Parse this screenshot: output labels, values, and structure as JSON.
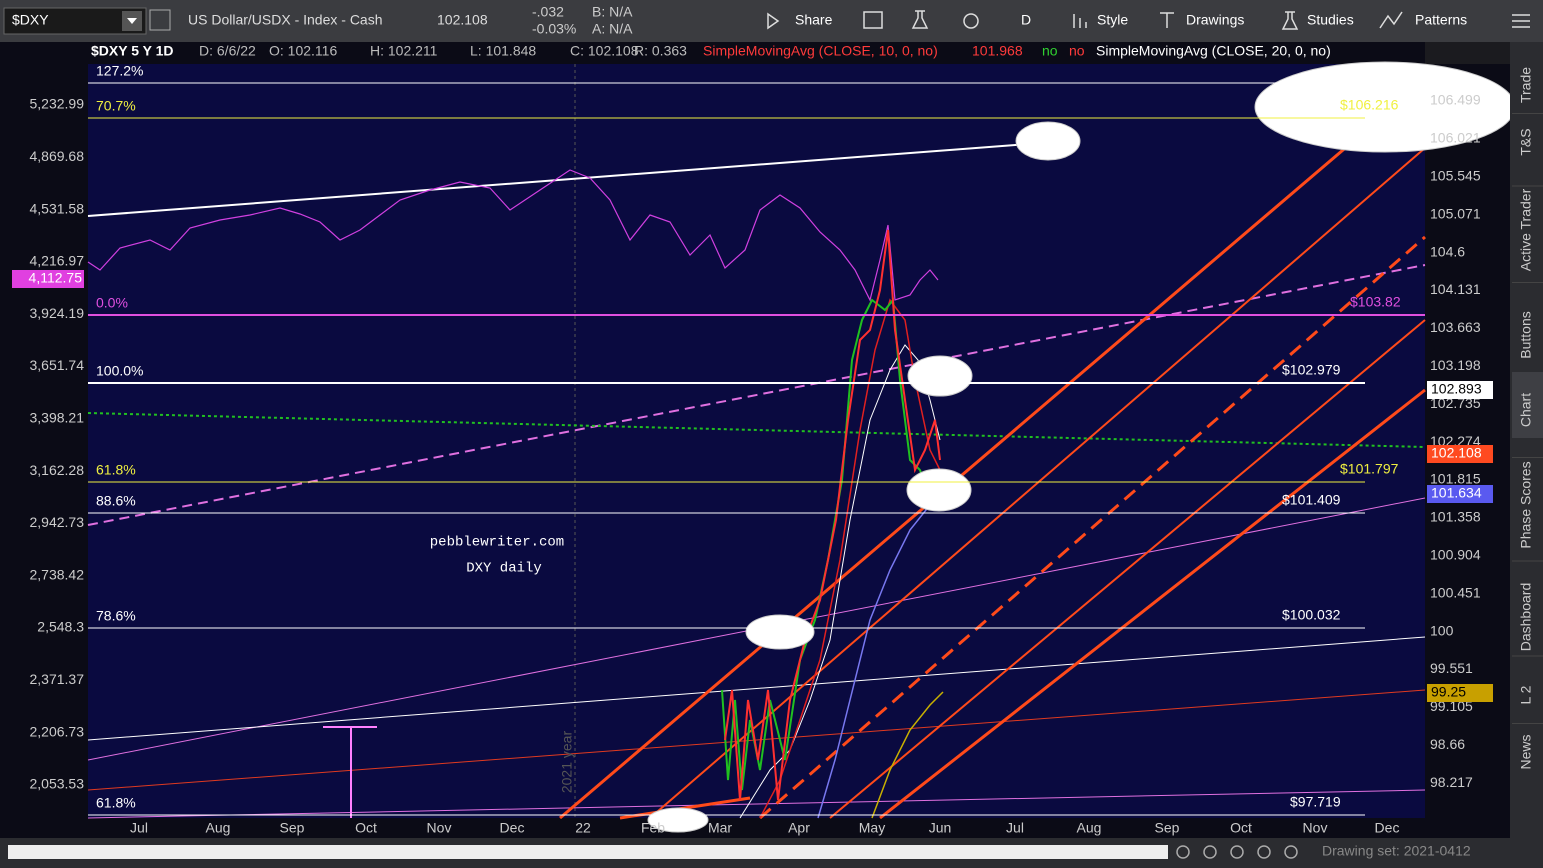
{
  "toolbar": {
    "symbol": "$DXY",
    "description": "US Dollar/USDX - Index - Cash",
    "last": "102.108",
    "change": "-.032",
    "change_pct": "-0.03%",
    "bid": "B: N/A",
    "ask": "A: N/A",
    "buttons": [
      "Share",
      "D",
      "Style",
      "Drawings",
      "Studies",
      "Patterns"
    ]
  },
  "header": {
    "chart": "$DXY 5 Y 1D",
    "date": "D: 6/6/22",
    "open": "O: 102.116",
    "high": "H: 102.211",
    "low": "L: 101.848",
    "close": "C: 102.108",
    "range": "R: 0.363",
    "sma10": "SimpleMovingAvg (CLOSE, 10, 0, no)",
    "sma10_value": "101.968",
    "flag1": "no",
    "flag2": "no",
    "sma20": "SimpleMovingAvg (CLOSE, 20, 0, no)"
  },
  "left_axis": {
    "labels": [
      "5,232.99",
      "4,869.68",
      "4,531.58",
      "4,216.97",
      "3,924.19",
      "3,651.74",
      "3,398.21",
      "3,162.28",
      "2,942.73",
      "2,738.42",
      "2,548.3",
      "2,371.37",
      "2,206.73",
      "2,053.53"
    ],
    "badge": "4,112.75"
  },
  "right_axis": {
    "labels": [
      "106.499",
      "106.021",
      "105.545",
      "105.071",
      "104.6",
      "104.131",
      "103.663",
      "103.198",
      "102.735",
      "102.274",
      "101.815",
      "101.358",
      "100.904",
      "100.451",
      "100",
      "99.551",
      "99.105",
      "98.66",
      "98.217"
    ],
    "badges": [
      "102.893",
      "102.108",
      "101.634",
      "99.25"
    ]
  },
  "x_axis": {
    "labels": [
      "Jul",
      "Aug",
      "Sep",
      "Oct",
      "Nov",
      "Dec",
      "22",
      "Feb",
      "Mar",
      "Apr",
      "May",
      "Jun",
      "Jul",
      "Aug",
      "Sep",
      "Oct",
      "Nov",
      "Dec"
    ]
  },
  "fib_levels": [
    {
      "pct": "127.2%",
      "price": null
    },
    {
      "pct": "70.7%",
      "price": "$106.216"
    },
    {
      "pct": "0.0%",
      "price": "$103.82"
    },
    {
      "pct": "100.0%",
      "price": "$102.979"
    },
    {
      "pct": "61.8%",
      "price": "$101.797"
    },
    {
      "pct": "88.6%",
      "price": "$101.409"
    },
    {
      "pct": "78.6%",
      "price": "$100.032"
    },
    {
      "pct": "61.8%",
      "price": "$97.719"
    }
  ],
  "watermark": {
    "site": "pebblewriter.com",
    "caption": "DXY daily",
    "year": "2021 year"
  },
  "side_tabs": [
    "Trade",
    "T&S",
    "Active Trader",
    "Buttons",
    "Chart",
    "Phase Scores",
    "Dashboard",
    "L 2",
    "News"
  ],
  "footer": {
    "drawing_set": "Drawing set: 2021-0412"
  }
}
